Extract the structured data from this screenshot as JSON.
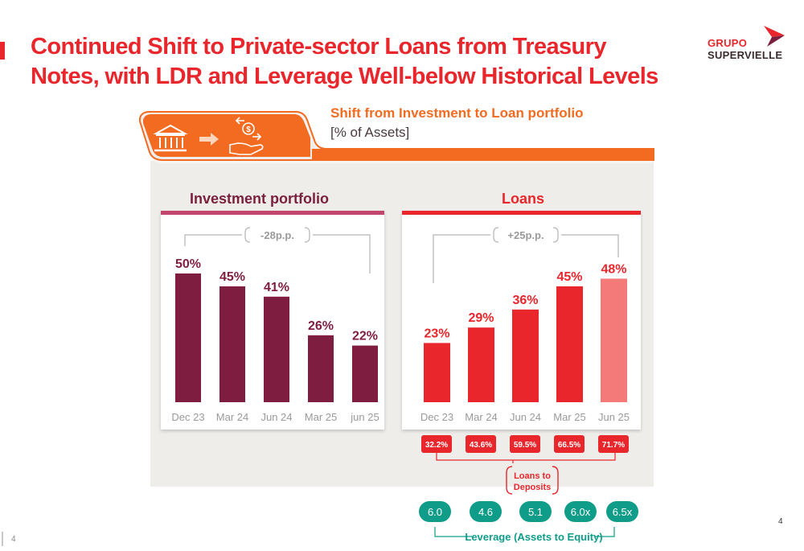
{
  "slide": {
    "title": "Continued Shift to Private-sector Loans from Treasury Notes, with LDR and Leverage Well-below Historical Levels",
    "page_number_left": "4",
    "page_number_right": "4"
  },
  "logo": {
    "line1": "GRUPO",
    "line2": "SUPERVIELLE"
  },
  "section": {
    "title": "Shift from Investment to Loan portfolio",
    "subtitle": "[% of Assets]",
    "icons": [
      "bank-icon",
      "arrow-right-icon",
      "loan-money-hand-icon"
    ]
  },
  "colors": {
    "brand_red": "#e8262b",
    "investment_bar": "#7f1d40",
    "investment_header": "#c2456d",
    "loan_bar": "#e8262b",
    "loan_bar_last": "#f47a7a",
    "ldr_box": "#e8262b",
    "leverage_pill": "#0f9d8a",
    "orange": "#f26b21"
  },
  "chart_data": [
    {
      "type": "bar",
      "title": "Investment portfolio",
      "categories": [
        "Dec 23",
        "Mar 24",
        "Jun 24",
        "Mar 25",
        "jun 25"
      ],
      "values": [
        50,
        45,
        41,
        26,
        22
      ],
      "data_labels": [
        "50%",
        "45%",
        "41%",
        "26%",
        "22%"
      ],
      "unit": "% of Assets",
      "ylim": [
        0,
        55
      ],
      "annotation": "-28p.p.",
      "grid": false
    },
    {
      "type": "bar",
      "title": "Loans",
      "categories": [
        "Dec 23",
        "Mar 24",
        "Jun 24",
        "Mar 25",
        "Jun 25"
      ],
      "values": [
        23,
        29,
        36,
        45,
        48
      ],
      "data_labels": [
        "23%",
        "29%",
        "36%",
        "45%",
        "48%"
      ],
      "unit": "% of Assets",
      "ylim": [
        0,
        55
      ],
      "annotation": "+25p.p.",
      "grid": false,
      "loans_to_deposits": {
        "label": "Loans to Deposits",
        "values": [
          "32.2%",
          "43.6%",
          "59.5%",
          "66.5%",
          "71.7%"
        ]
      },
      "leverage": {
        "label": "Leverage (Assets to Equity)",
        "values": [
          "6.0",
          "4.6",
          "5.1",
          "6.0x",
          "6.5x"
        ]
      }
    }
  ]
}
